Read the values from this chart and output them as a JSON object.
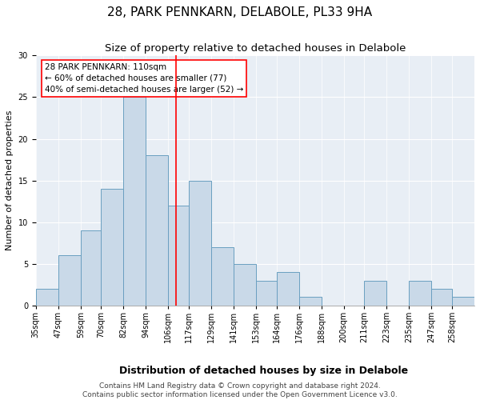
{
  "title1": "28, PARK PENNKARN, DELABOLE, PL33 9HA",
  "title2": "Size of property relative to detached houses in Delabole",
  "xlabel": "Distribution of detached houses by size in Delabole",
  "ylabel": "Number of detached properties",
  "bar_color": "#c9d9e8",
  "bar_edge_color": "#6a9fc0",
  "background_color": "#e8eef5",
  "vline_x": 110,
  "vline_color": "red",
  "annotation_title": "28 PARK PENNKARN: 110sqm",
  "annotation_line1": "← 60% of detached houses are smaller (77)",
  "annotation_line2": "40% of semi-detached houses are larger (52) →",
  "bins": [
    35,
    47,
    59,
    70,
    82,
    94,
    106,
    117,
    129,
    141,
    153,
    164,
    176,
    188,
    200,
    211,
    223,
    235,
    247,
    258,
    270
  ],
  "counts": [
    2,
    6,
    9,
    14,
    25,
    18,
    12,
    15,
    7,
    5,
    3,
    4,
    1,
    0,
    0,
    3,
    0,
    3,
    2,
    1
  ],
  "ylim": [
    0,
    30
  ],
  "yticks": [
    0,
    5,
    10,
    15,
    20,
    25,
    30
  ],
  "footer": "Contains HM Land Registry data © Crown copyright and database right 2024.\nContains public sector information licensed under the Open Government Licence v3.0.",
  "title1_fontsize": 11,
  "title2_fontsize": 9.5,
  "xlabel_fontsize": 9,
  "ylabel_fontsize": 8,
  "tick_fontsize": 7,
  "footer_fontsize": 6.5,
  "annotation_fontsize": 7.5
}
